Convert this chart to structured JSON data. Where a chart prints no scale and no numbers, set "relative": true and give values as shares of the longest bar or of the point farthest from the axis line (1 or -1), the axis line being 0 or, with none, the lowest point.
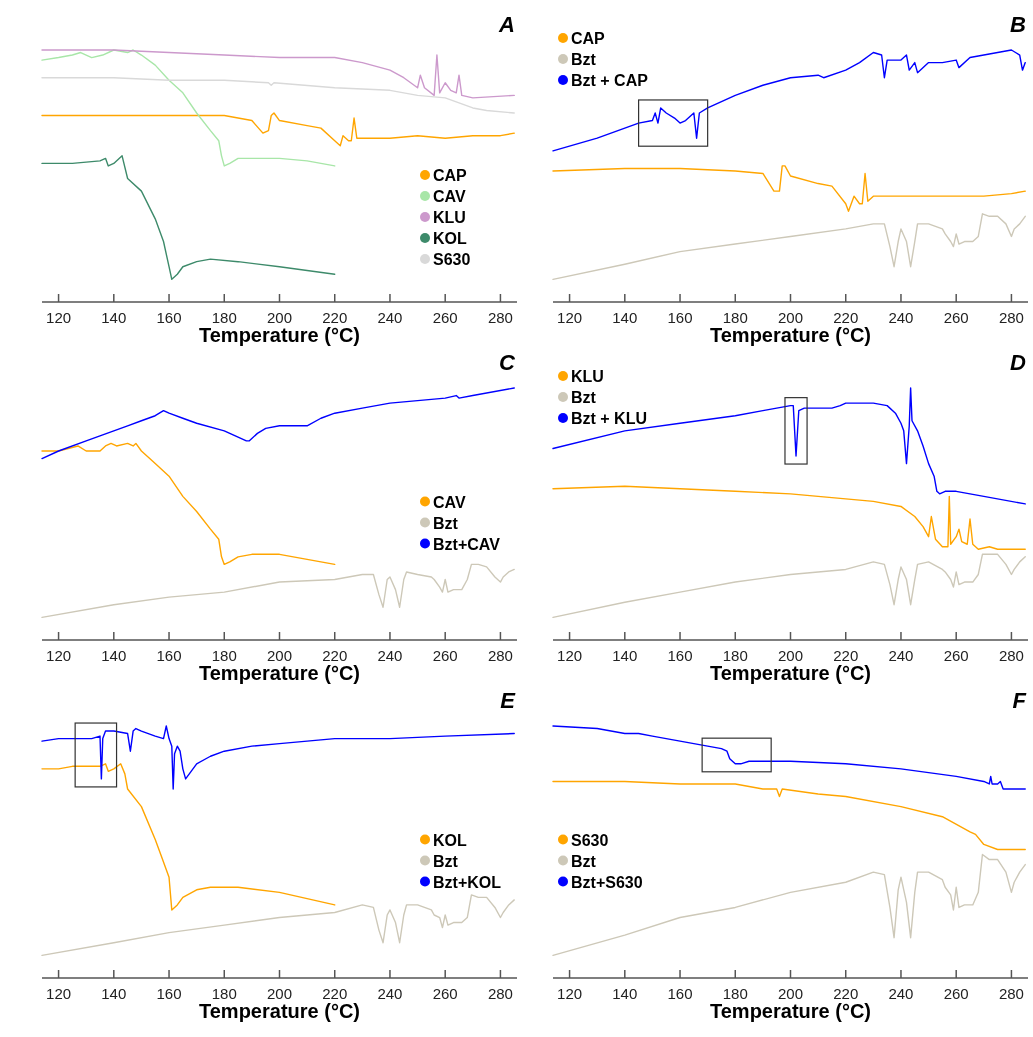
{
  "chart_data": [
    {
      "type": "line",
      "title": "A",
      "xlabel": "Temperature (°C)",
      "relative": true,
      "xlim": [
        114,
        286
      ],
      "xticks": [
        120,
        140,
        160,
        180,
        200,
        220,
        240,
        260,
        280
      ],
      "legend": "bottom right",
      "series": [
        {
          "name": "CAP",
          "color": "#ffa500",
          "x": [
            114,
            140,
            160,
            180,
            190,
            194,
            196,
            197,
            198,
            200,
            210,
            215,
            220,
            222,
            223,
            225,
            226,
            227,
            228,
            230,
            240,
            250,
            260,
            270,
            280,
            285
          ],
          "values": [
            0.74,
            0.74,
            0.74,
            0.74,
            0.72,
            0.67,
            0.68,
            0.74,
            0.75,
            0.72,
            0.7,
            0.69,
            0.64,
            0.62,
            0.66,
            0.64,
            0.64,
            0.73,
            0.65,
            0.65,
            0.65,
            0.66,
            0.65,
            0.66,
            0.66,
            0.67
          ]
        },
        {
          "name": "CAV",
          "color": "#a8e6a8",
          "x": [
            114,
            120,
            125,
            128,
            132,
            136,
            140,
            145,
            147,
            150,
            155,
            160,
            165,
            170,
            175,
            178,
            179,
            180,
            182,
            185,
            190,
            200,
            210,
            220
          ],
          "values": [
            0.96,
            0.97,
            0.98,
            0.99,
            0.97,
            0.98,
            1.0,
            0.99,
            1.0,
            0.98,
            0.94,
            0.88,
            0.83,
            0.75,
            0.68,
            0.64,
            0.58,
            0.54,
            0.55,
            0.57,
            0.57,
            0.57,
            0.56,
            0.54
          ]
        },
        {
          "name": "KLU",
          "color": "#cc99cc",
          "x": [
            114,
            140,
            160,
            180,
            200,
            220,
            230,
            240,
            245,
            250,
            251,
            252.5,
            256,
            257,
            258,
            260,
            262,
            264,
            265,
            266,
            270,
            285
          ],
          "values": [
            1.0,
            1.0,
            0.99,
            0.98,
            0.97,
            0.97,
            0.95,
            0.92,
            0.89,
            0.85,
            0.9,
            0.85,
            0.82,
            0.98,
            0.83,
            0.87,
            0.84,
            0.83,
            0.9,
            0.82,
            0.81,
            0.82
          ]
        },
        {
          "name": "KOL",
          "color": "#3d8a6a",
          "x": [
            114,
            125,
            135,
            137,
            138,
            140,
            143,
            145,
            150,
            155,
            158,
            160,
            161,
            163,
            165,
            170,
            175,
            185,
            200,
            220
          ],
          "values": [
            0.55,
            0.55,
            0.56,
            0.57,
            0.54,
            0.55,
            0.58,
            0.49,
            0.44,
            0.33,
            0.24,
            0.14,
            0.09,
            0.11,
            0.14,
            0.16,
            0.17,
            0.16,
            0.14,
            0.11
          ]
        },
        {
          "name": "S630",
          "color": "#d9d9d9",
          "x": [
            114,
            140,
            160,
            180,
            196,
            197,
            198,
            220,
            240,
            250,
            260,
            270,
            275,
            285
          ],
          "values": [
            0.89,
            0.89,
            0.88,
            0.88,
            0.87,
            0.86,
            0.87,
            0.85,
            0.84,
            0.82,
            0.81,
            0.77,
            0.76,
            0.75
          ]
        }
      ]
    },
    {
      "type": "line",
      "title": "B",
      "xlabel": "Temperature (°C)",
      "relative": true,
      "xlim": [
        114,
        286
      ],
      "xticks": [
        120,
        140,
        160,
        180,
        200,
        220,
        240,
        260,
        280
      ],
      "legend": "top left",
      "series": [
        {
          "name": "CAP",
          "color": "#ffa500",
          "x": [
            114,
            140,
            160,
            180,
            190,
            194,
            196,
            197,
            198,
            200,
            210,
            215,
            220,
            221,
            223,
            225,
            226,
            227,
            228,
            230,
            240,
            250,
            260,
            270,
            280,
            285
          ],
          "values": [
            0.52,
            0.53,
            0.53,
            0.52,
            0.51,
            0.44,
            0.44,
            0.54,
            0.54,
            0.5,
            0.47,
            0.46,
            0.39,
            0.36,
            0.42,
            0.39,
            0.39,
            0.51,
            0.4,
            0.42,
            0.42,
            0.42,
            0.42,
            0.42,
            0.43,
            0.44
          ]
        },
        {
          "name": "Bzt",
          "color": "#cdc8b8",
          "x": [
            114,
            140,
            160,
            180,
            200,
            220,
            230,
            234,
            236,
            237.5,
            239,
            240,
            242,
            243.5,
            245,
            246,
            250,
            255,
            256,
            258,
            259,
            260,
            261,
            263,
            266,
            268,
            269.5,
            272,
            275,
            278,
            280,
            281,
            283,
            285
          ],
          "values": [
            0.09,
            0.15,
            0.2,
            0.23,
            0.26,
            0.29,
            0.31,
            0.31,
            0.22,
            0.14,
            0.24,
            0.29,
            0.24,
            0.14,
            0.24,
            0.31,
            0.31,
            0.29,
            0.27,
            0.24,
            0.22,
            0.27,
            0.23,
            0.24,
            0.24,
            0.26,
            0.35,
            0.34,
            0.34,
            0.31,
            0.26,
            0.29,
            0.31,
            0.34
          ]
        },
        {
          "name": "Bzt + CAP",
          "color": "#0000ff",
          "x": [
            114,
            130,
            145,
            150,
            151,
            152,
            153,
            155,
            158,
            160,
            162,
            165,
            166,
            167,
            170,
            180,
            190,
            200,
            210,
            212,
            220,
            225,
            230,
            233,
            234,
            235,
            240,
            242,
            243,
            245,
            246,
            250,
            255,
            260,
            261,
            265,
            270,
            275,
            280,
            283,
            284,
            285
          ],
          "values": [
            0.6,
            0.65,
            0.71,
            0.72,
            0.75,
            0.71,
            0.77,
            0.75,
            0.73,
            0.71,
            0.72,
            0.75,
            0.65,
            0.75,
            0.77,
            0.82,
            0.86,
            0.89,
            0.9,
            0.89,
            0.92,
            0.95,
            0.99,
            0.98,
            0.89,
            0.96,
            0.96,
            0.98,
            0.92,
            0.95,
            0.91,
            0.95,
            0.95,
            0.96,
            0.93,
            0.97,
            0.98,
            0.99,
            1.0,
            0.98,
            0.92,
            0.95
          ]
        }
      ]
    },
    {
      "type": "line",
      "title": "C",
      "xlabel": "Temperature (°C)",
      "relative": true,
      "xlim": [
        114,
        286
      ],
      "xticks": [
        120,
        140,
        160,
        180,
        200,
        220,
        240,
        260,
        280
      ],
      "legend": "right",
      "series": [
        {
          "name": "CAV",
          "color": "#ffa500",
          "x": [
            114,
            120,
            127,
            130,
            135,
            137,
            139,
            141,
            145,
            147,
            148,
            150,
            155,
            160,
            165,
            170,
            175,
            178,
            179,
            180,
            182,
            185,
            190,
            200,
            210,
            220
          ],
          "values": [
            0.75,
            0.75,
            0.77,
            0.75,
            0.75,
            0.77,
            0.78,
            0.77,
            0.78,
            0.77,
            0.78,
            0.75,
            0.7,
            0.65,
            0.57,
            0.51,
            0.44,
            0.4,
            0.33,
            0.3,
            0.31,
            0.33,
            0.34,
            0.34,
            0.32,
            0.3
          ]
        },
        {
          "name": "Bzt",
          "color": "#cdc8b8",
          "x": [
            114,
            140,
            160,
            180,
            200,
            220,
            230,
            234,
            236,
            237.5,
            239,
            240,
            242,
            243.5,
            245,
            246,
            250,
            255,
            256,
            258,
            259,
            260,
            261,
            263,
            266,
            268,
            269.5,
            272,
            275,
            278,
            280,
            281,
            283,
            285
          ],
          "values": [
            0.09,
            0.14,
            0.17,
            0.19,
            0.23,
            0.24,
            0.26,
            0.26,
            0.18,
            0.13,
            0.24,
            0.25,
            0.2,
            0.13,
            0.24,
            0.27,
            0.26,
            0.25,
            0.24,
            0.21,
            0.19,
            0.24,
            0.19,
            0.2,
            0.2,
            0.24,
            0.3,
            0.3,
            0.29,
            0.25,
            0.23,
            0.25,
            0.27,
            0.28
          ]
        },
        {
          "name": "Bzt+CAV",
          "color": "#0000ff",
          "x": [
            114,
            120,
            130,
            140,
            145,
            150,
            155,
            158,
            160,
            165,
            170,
            180,
            188,
            189,
            192,
            195,
            200,
            205,
            210,
            215,
            220,
            230,
            240,
            260,
            264,
            265,
            270,
            285
          ],
          "values": [
            0.72,
            0.75,
            0.79,
            0.83,
            0.85,
            0.87,
            0.89,
            0.91,
            0.9,
            0.88,
            0.86,
            0.83,
            0.79,
            0.79,
            0.82,
            0.84,
            0.85,
            0.85,
            0.85,
            0.88,
            0.9,
            0.92,
            0.94,
            0.96,
            0.97,
            0.96,
            0.97,
            1.0
          ]
        }
      ]
    },
    {
      "type": "line",
      "title": "D",
      "xlabel": "Temperature (°C)",
      "relative": true,
      "xlim": [
        114,
        286
      ],
      "xticks": [
        120,
        140,
        160,
        180,
        200,
        220,
        240,
        260,
        280
      ],
      "legend": "top left",
      "series": [
        {
          "name": "KLU",
          "color": "#ffa500",
          "x": [
            114,
            140,
            160,
            180,
            200,
            220,
            230,
            240,
            245,
            248,
            250,
            251,
            252.5,
            255,
            257,
            257.5,
            258,
            260,
            261,
            262,
            264,
            265,
            266,
            268,
            272,
            275,
            285
          ],
          "values": [
            0.6,
            0.61,
            0.6,
            0.59,
            0.58,
            0.56,
            0.55,
            0.53,
            0.49,
            0.45,
            0.41,
            0.49,
            0.4,
            0.37,
            0.37,
            0.57,
            0.38,
            0.41,
            0.44,
            0.39,
            0.38,
            0.48,
            0.38,
            0.36,
            0.37,
            0.36,
            0.36
          ]
        },
        {
          "name": "Bzt",
          "color": "#cdc8b8",
          "x": [
            114,
            140,
            160,
            180,
            200,
            220,
            230,
            234,
            236,
            237.5,
            239,
            240,
            242,
            243.5,
            245,
            246,
            250,
            255,
            256,
            258,
            259,
            260,
            261,
            263,
            266,
            268,
            269.5,
            272,
            275,
            278,
            280,
            281,
            283,
            285
          ],
          "values": [
            0.09,
            0.15,
            0.19,
            0.23,
            0.26,
            0.28,
            0.31,
            0.3,
            0.22,
            0.14,
            0.24,
            0.29,
            0.24,
            0.14,
            0.24,
            0.3,
            0.31,
            0.28,
            0.27,
            0.24,
            0.21,
            0.27,
            0.22,
            0.23,
            0.23,
            0.26,
            0.34,
            0.34,
            0.34,
            0.3,
            0.26,
            0.28,
            0.31,
            0.33
          ]
        },
        {
          "name": "Bzt + KLU",
          "color": "#0000ff",
          "x": [
            114,
            140,
            160,
            180,
            190,
            195,
            200,
            201,
            202,
            203,
            205,
            210,
            215,
            218,
            220,
            225,
            230,
            235,
            238,
            240,
            241,
            242,
            243,
            243.5,
            244,
            246,
            248,
            250,
            252,
            253,
            254,
            256,
            260,
            270,
            285
          ],
          "values": [
            0.76,
            0.83,
            0.86,
            0.89,
            0.91,
            0.92,
            0.93,
            0.93,
            0.73,
            0.91,
            0.92,
            0.92,
            0.92,
            0.93,
            0.94,
            0.94,
            0.94,
            0.93,
            0.9,
            0.86,
            0.83,
            0.7,
            0.85,
            1.0,
            0.87,
            0.83,
            0.77,
            0.7,
            0.65,
            0.59,
            0.58,
            0.59,
            0.59,
            0.57,
            0.54
          ]
        }
      ]
    },
    {
      "type": "line",
      "title": "E",
      "xlabel": "Temperature (°C)",
      "relative": true,
      "xlim": [
        114,
        286
      ],
      "xticks": [
        120,
        140,
        160,
        180,
        200,
        220,
        240,
        260,
        280
      ],
      "legend": "right",
      "series": [
        {
          "name": "KOL",
          "color": "#ffa500",
          "x": [
            114,
            120,
            125,
            130,
            135,
            137,
            138,
            140,
            142.5,
            144,
            145,
            150,
            155,
            157,
            160,
            161,
            163,
            165,
            170,
            175,
            185,
            200,
            220
          ],
          "values": [
            0.83,
            0.83,
            0.84,
            0.84,
            0.84,
            0.85,
            0.82,
            0.83,
            0.85,
            0.81,
            0.75,
            0.68,
            0.55,
            0.49,
            0.4,
            0.27,
            0.29,
            0.32,
            0.35,
            0.36,
            0.36,
            0.34,
            0.29
          ]
        },
        {
          "name": "Bzt",
          "color": "#cdc8b8",
          "x": [
            114,
            140,
            160,
            180,
            200,
            220,
            230,
            234,
            236,
            237.5,
            239,
            240,
            242,
            243.5,
            245,
            246,
            250,
            255,
            256,
            258,
            259,
            260,
            261,
            263,
            266,
            268,
            269.5,
            272,
            275,
            278,
            280,
            281,
            283,
            285
          ],
          "values": [
            0.09,
            0.14,
            0.18,
            0.21,
            0.24,
            0.26,
            0.29,
            0.28,
            0.19,
            0.14,
            0.25,
            0.27,
            0.22,
            0.14,
            0.25,
            0.29,
            0.29,
            0.27,
            0.25,
            0.24,
            0.2,
            0.25,
            0.21,
            0.22,
            0.22,
            0.24,
            0.33,
            0.32,
            0.32,
            0.28,
            0.24,
            0.26,
            0.29,
            0.31
          ]
        },
        {
          "name": "Bzt+KOL",
          "color": "#0000ff",
          "x": [
            114,
            120,
            125,
            130,
            131,
            132,
            135,
            135.5,
            136,
            137,
            140,
            145,
            146,
            147,
            148,
            150,
            155,
            158,
            159,
            160,
            161,
            161.5,
            162,
            163,
            164,
            165,
            166,
            168,
            170,
            175,
            180,
            190,
            200,
            220,
            240,
            260,
            285
          ],
          "values": [
            0.94,
            0.95,
            0.95,
            0.95,
            0.95,
            0.95,
            0.96,
            0.79,
            0.95,
            0.98,
            0.98,
            0.97,
            0.9,
            0.98,
            0.99,
            0.98,
            0.96,
            0.95,
            1.0,
            0.95,
            0.92,
            0.75,
            0.89,
            0.92,
            0.9,
            0.83,
            0.79,
            0.82,
            0.85,
            0.88,
            0.9,
            0.92,
            0.93,
            0.95,
            0.95,
            0.96,
            0.97
          ]
        }
      ]
    },
    {
      "type": "line",
      "title": "F",
      "xlabel": "Temperature (°C)",
      "relative": true,
      "xlim": [
        114,
        286
      ],
      "xticks": [
        120,
        140,
        160,
        180,
        200,
        220,
        240,
        260,
        280
      ],
      "legend": "left",
      "series": [
        {
          "name": "S630",
          "color": "#ffa500",
          "x": [
            114,
            140,
            160,
            180,
            190,
            195,
            196,
            197,
            210,
            220,
            240,
            255,
            265,
            267,
            270,
            275,
            285
          ],
          "values": [
            0.78,
            0.78,
            0.77,
            0.77,
            0.75,
            0.75,
            0.72,
            0.75,
            0.73,
            0.72,
            0.68,
            0.64,
            0.58,
            0.57,
            0.53,
            0.51,
            0.51
          ]
        },
        {
          "name": "Bzt",
          "color": "#cdc8b8",
          "x": [
            114,
            140,
            160,
            180,
            200,
            220,
            230,
            234,
            236,
            237.5,
            239,
            240,
            242,
            243.5,
            245,
            246,
            250,
            255,
            256,
            258,
            259,
            260,
            261,
            263,
            266,
            268,
            269.5,
            272,
            275,
            278,
            280,
            281,
            283,
            285
          ],
          "values": [
            0.09,
            0.17,
            0.24,
            0.28,
            0.34,
            0.38,
            0.42,
            0.41,
            0.28,
            0.16,
            0.35,
            0.4,
            0.3,
            0.16,
            0.34,
            0.42,
            0.42,
            0.39,
            0.36,
            0.33,
            0.27,
            0.36,
            0.28,
            0.29,
            0.29,
            0.34,
            0.49,
            0.47,
            0.47,
            0.42,
            0.34,
            0.38,
            0.42,
            0.45
          ]
        },
        {
          "name": "Bzt+S630",
          "color": "#0000ff",
          "x": [
            114,
            130,
            140,
            145,
            150,
            160,
            170,
            175,
            177,
            178,
            180,
            182,
            185,
            190,
            195,
            200,
            220,
            240,
            260,
            270,
            272,
            272.5,
            273,
            275,
            276,
            277,
            280,
            282,
            283,
            285
          ],
          "values": [
            1.0,
            0.99,
            0.97,
            0.97,
            0.96,
            0.94,
            0.92,
            0.91,
            0.9,
            0.87,
            0.85,
            0.85,
            0.86,
            0.86,
            0.86,
            0.86,
            0.85,
            0.83,
            0.8,
            0.78,
            0.77,
            0.8,
            0.77,
            0.77,
            0.78,
            0.75,
            0.75,
            0.75,
            0.75,
            0.75
          ]
        }
      ]
    }
  ]
}
